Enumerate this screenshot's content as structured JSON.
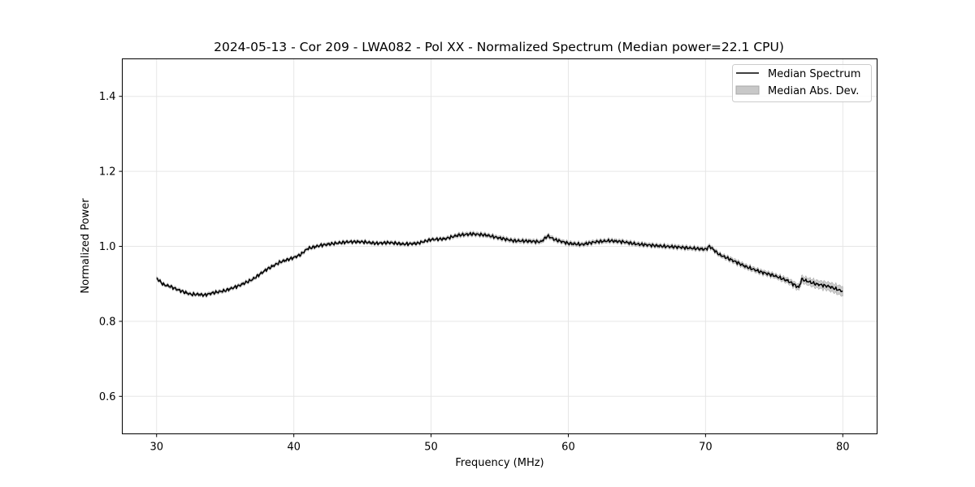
{
  "chart_data": {
    "type": "line",
    "title": "2024-05-13 - Cor 209 - LWA082 - Pol XX - Normalized Spectrum (Median power=22.1 CPU)",
    "xlabel": "Frequency (MHz)",
    "ylabel": "Normalized Power",
    "xlim": [
      27.5,
      82.5
    ],
    "ylim": [
      0.5,
      1.5
    ],
    "xticks": [
      30,
      40,
      50,
      60,
      70,
      80
    ],
    "yticks": [
      0.6,
      0.8,
      1.0,
      1.2,
      1.4
    ],
    "xtick_labels": [
      "30",
      "40",
      "50",
      "60",
      "70",
      "80"
    ],
    "ytick_labels": [
      "0.6",
      "0.8",
      "1.0",
      "1.2",
      "1.4"
    ],
    "grid": true,
    "legend_position": "top-right",
    "legend": [
      "Median Spectrum",
      "Median Abs. Dev."
    ],
    "series": [
      {
        "name": "Median Spectrum",
        "color": "#000000",
        "x": [
          30,
          30.5,
          31,
          31.5,
          32,
          32.5,
          33,
          33.5,
          34,
          35,
          36,
          37,
          38,
          39,
          40,
          40.5,
          41,
          42,
          43,
          44,
          45,
          46,
          47,
          48,
          49,
          50,
          51,
          52,
          53,
          54,
          55,
          56,
          57,
          58,
          58.5,
          59,
          60,
          61,
          62,
          63,
          64,
          65,
          66,
          67,
          68,
          69,
          70,
          70.3,
          71,
          72,
          73,
          74,
          75,
          76,
          76.8,
          77,
          78,
          79,
          80
        ],
        "values": [
          0.915,
          0.898,
          0.893,
          0.885,
          0.878,
          0.872,
          0.872,
          0.87,
          0.875,
          0.882,
          0.895,
          0.912,
          0.938,
          0.958,
          0.97,
          0.978,
          0.994,
          1.003,
          1.008,
          1.012,
          1.012,
          1.008,
          1.01,
          1.006,
          1.008,
          1.018,
          1.02,
          1.03,
          1.033,
          1.03,
          1.022,
          1.015,
          1.014,
          1.012,
          1.028,
          1.018,
          1.008,
          1.005,
          1.012,
          1.015,
          1.012,
          1.006,
          1.003,
          1.0,
          0.998,
          0.995,
          0.992,
          1.0,
          0.978,
          0.962,
          0.945,
          0.932,
          0.922,
          0.908,
          0.89,
          0.912,
          0.9,
          0.893,
          0.88
        ],
        "mad": [
          0.004,
          0.004,
          0.004,
          0.004,
          0.004,
          0.004,
          0.004,
          0.004,
          0.004,
          0.004,
          0.004,
          0.004,
          0.004,
          0.004,
          0.004,
          0.004,
          0.004,
          0.004,
          0.004,
          0.004,
          0.004,
          0.004,
          0.004,
          0.004,
          0.004,
          0.004,
          0.004,
          0.005,
          0.005,
          0.005,
          0.005,
          0.005,
          0.005,
          0.005,
          0.005,
          0.005,
          0.005,
          0.005,
          0.005,
          0.005,
          0.005,
          0.005,
          0.005,
          0.005,
          0.005,
          0.005,
          0.005,
          0.005,
          0.005,
          0.006,
          0.006,
          0.006,
          0.006,
          0.007,
          0.008,
          0.009,
          0.01,
          0.011,
          0.013
        ]
      }
    ]
  },
  "colors": {
    "line": "#000000",
    "band_fill": "#bfbfbf",
    "band_edge": "#999999",
    "grid": "#e6e6e6"
  }
}
